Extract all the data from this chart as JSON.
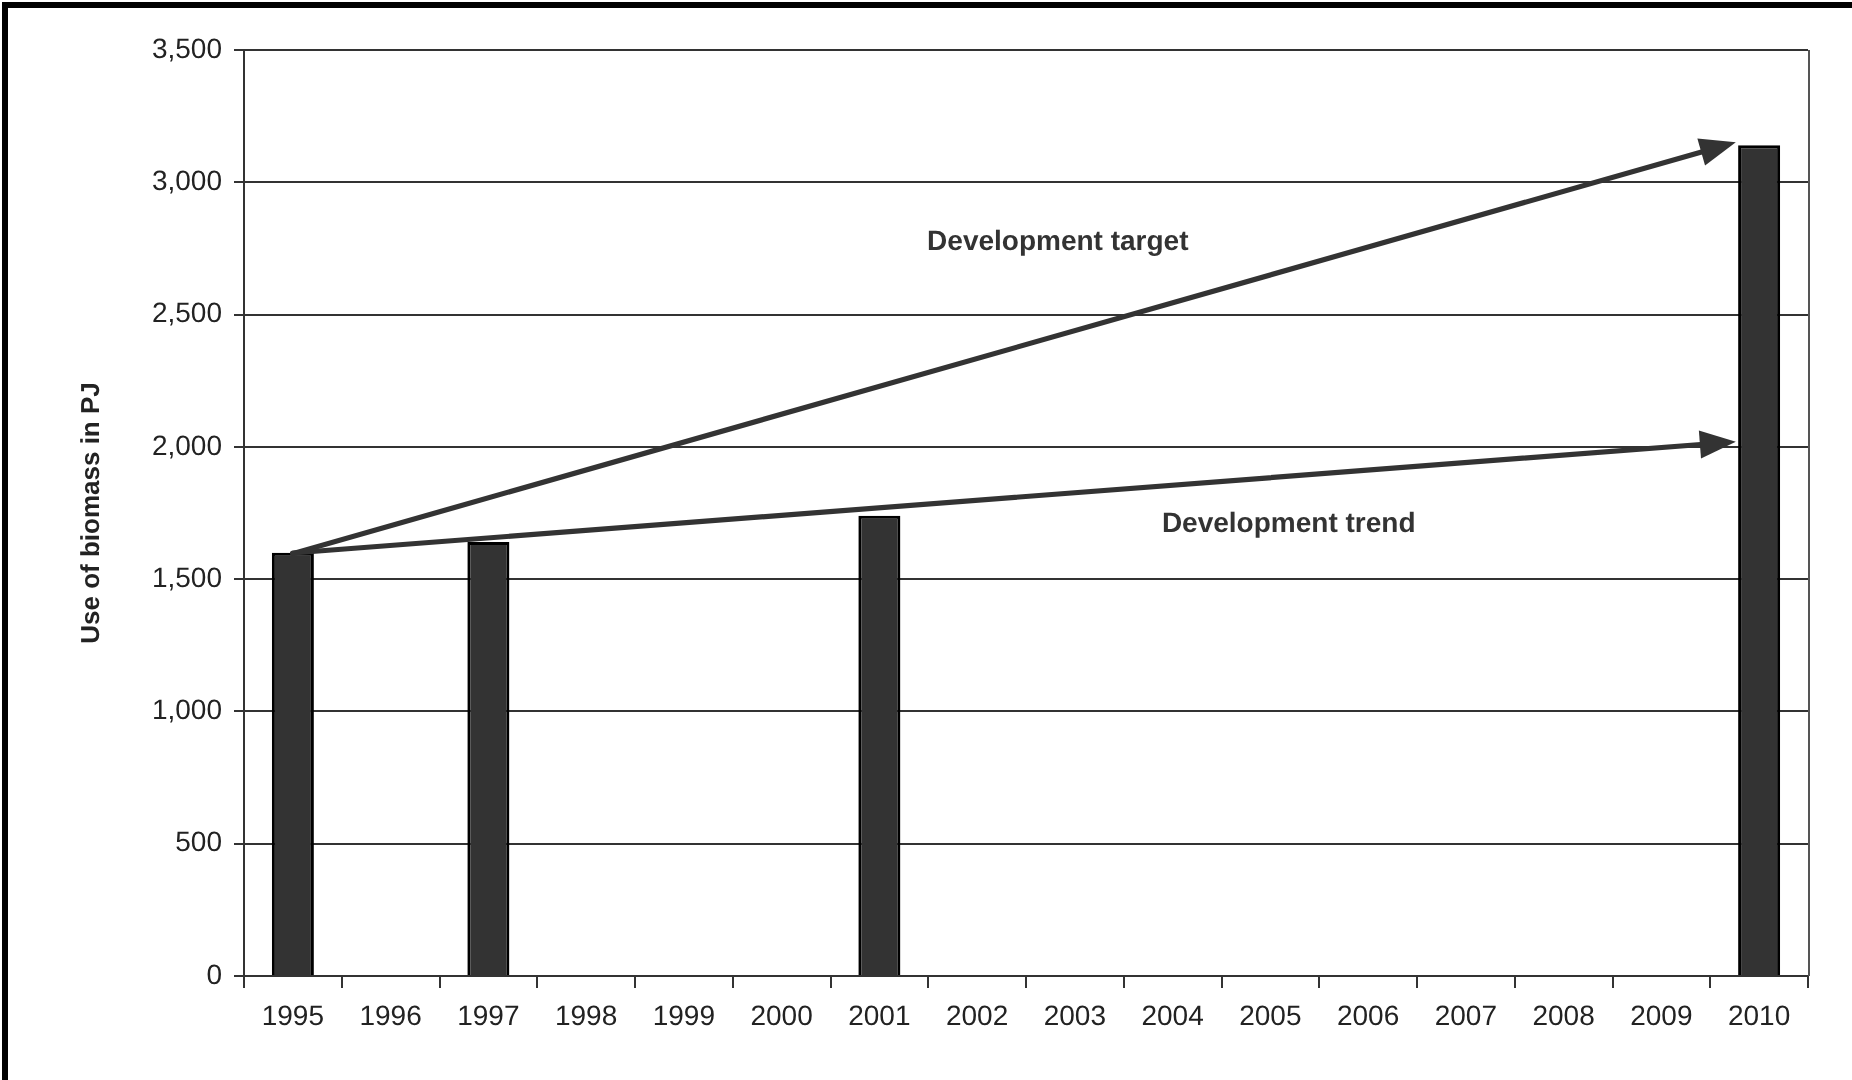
{
  "chart_data": {
    "type": "bar",
    "ylabel": "Use of biomass in PJ",
    "categories": [
      "1995",
      "1996",
      "1997",
      "1998",
      "1999",
      "2000",
      "2001",
      "2002",
      "2003",
      "2004",
      "2005",
      "2006",
      "2007",
      "2008",
      "2009",
      "2010"
    ],
    "values": [
      1600,
      null,
      1640,
      null,
      null,
      null,
      1740,
      null,
      null,
      null,
      null,
      null,
      null,
      null,
      null,
      3140
    ],
    "color": "#333333",
    "ylim": [
      0,
      3500
    ],
    "yticks": [
      0,
      500,
      {
        "value": 1000,
        "label": "1,000"
      },
      {
        "value": 1500,
        "label": "1,500"
      },
      {
        "value": 2000,
        "label": "2,000"
      },
      {
        "value": 2500,
        "label": "2,500"
      },
      {
        "value": 3000,
        "label": "3,000"
      },
      {
        "value": 3500,
        "label": "3,500"
      }
    ],
    "grid": "y",
    "annotations": [
      "Development target",
      "Development trend"
    ]
  }
}
